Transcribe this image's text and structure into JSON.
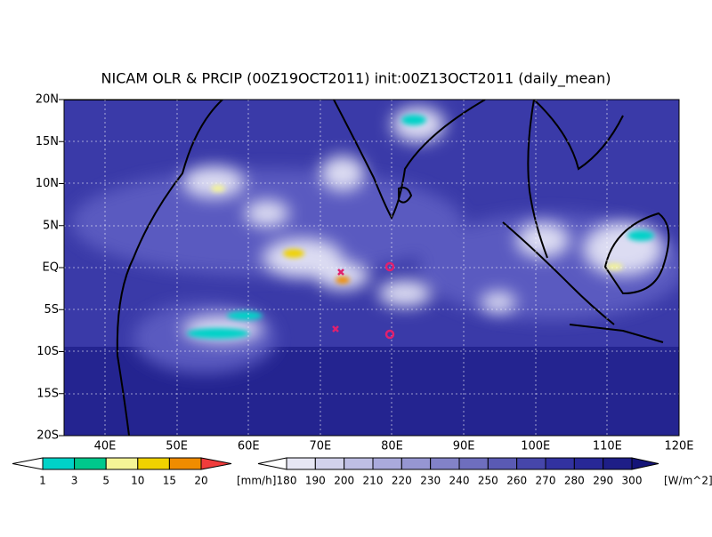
{
  "map": {
    "title": "NICAM OLR & PRCIP (00Z19OCT2011) init:00Z13OCT2011 (daily_mean)",
    "lat_labels": [
      "20N",
      "15N",
      "10N",
      "5N",
      "EQ",
      "5S",
      "10S",
      "15S",
      "20S"
    ],
    "lon_labels": [
      "40E",
      "50E",
      "60E",
      "70E",
      "80E",
      "90E",
      "100E",
      "110E",
      "120E"
    ],
    "precip_legend": {
      "labels": [
        1,
        3,
        5,
        10,
        15,
        20
      ],
      "unit": "[mm/h]",
      "colors": [
        "#ffffff",
        "#00d2c8",
        "#00c88c",
        "#f5f596",
        "#f0d200",
        "#f08c00",
        "#f03c3c"
      ]
    },
    "olr_legend": {
      "labels": [
        180,
        190,
        200,
        210,
        220,
        230,
        240,
        250,
        260,
        270,
        280,
        290,
        300
      ],
      "unit": "[W/m^2]",
      "colors": [
        "#ffffff",
        "#e6e6f3",
        "#d2d2ec",
        "#bebee4",
        "#aaaadc",
        "#9696d2",
        "#8282c8",
        "#6e6ebe",
        "#5a5ab4",
        "#4646aa",
        "#3232a0",
        "#282896",
        "#1e1e87",
        "#141478"
      ]
    }
  }
}
